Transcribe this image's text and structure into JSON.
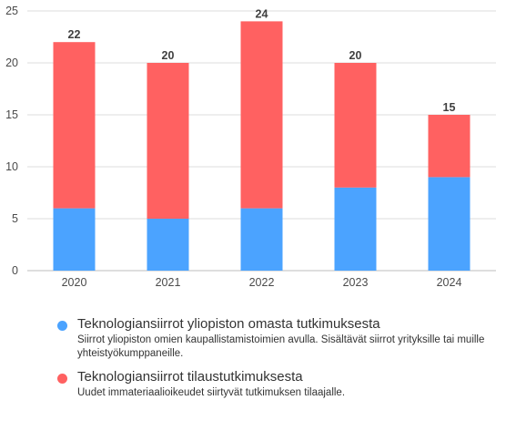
{
  "chart_data": {
    "type": "bar",
    "stacked": true,
    "categories": [
      "2020",
      "2021",
      "2022",
      "2023",
      "2024"
    ],
    "series": [
      {
        "name": "Teknologiansiirrot yliopiston omasta tutkimuksesta",
        "description": "Siirrot yliopiston omien kaupallistamistoimien avulla. Sisältävät siirrot yrityksille tai muille yhteistyökumppaneille.",
        "color": "#4ba3ff",
        "values": [
          6,
          5,
          6,
          8,
          9
        ]
      },
      {
        "name": "Teknologiansiirrot tilaustutkimuksesta",
        "description": "Uudet immateriaalioikeudet siirtyvät tutkimuksen tilaajalle.",
        "color": "#ff6161",
        "values": [
          16,
          15,
          18,
          12,
          6
        ]
      }
    ],
    "totals": [
      22,
      20,
      24,
      20,
      15
    ],
    "ylim": [
      0,
      25
    ],
    "yticks": [
      0,
      5,
      10,
      15,
      20,
      25
    ],
    "grid": true,
    "legend_position": "bottom"
  }
}
